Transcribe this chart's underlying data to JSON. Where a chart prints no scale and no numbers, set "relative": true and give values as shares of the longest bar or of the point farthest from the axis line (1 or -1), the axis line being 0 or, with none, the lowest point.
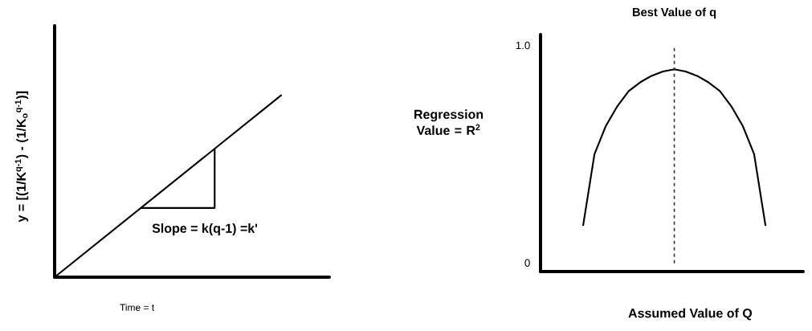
{
  "chart_data": [
    {
      "type": "line",
      "relative": true,
      "categories": [
        null,
        null
      ],
      "values": [
        0,
        1
      ],
      "color": "#000000",
      "xlabel": "Time = t",
      "ylabel": "y = [(1/K$^{q-1}$) - (1/K$_{o}$$^{q-1}$)]",
      "annotations": [
        "Slope = k(q-1) =k'"
      ]
    },
    {
      "type": "line",
      "categories": [
        null,
        null,
        null,
        null,
        null,
        null,
        null,
        null,
        null,
        null,
        null,
        null,
        null,
        null,
        null,
        null,
        null
      ],
      "values": [
        0.17,
        0.5,
        0.63,
        0.72,
        0.79,
        0.83,
        0.86,
        0.88,
        0.89,
        0.88,
        0.86,
        0.83,
        0.79,
        0.72,
        0.63,
        0.5,
        0.17
      ],
      "color": "#000000",
      "ylim": [
        -0.04,
        1.05
      ],
      "yticks": [
        0,
        {
          "value": 1,
          "label": "1.0"
        }
      ],
      "tick_labels": "y",
      "ylabel": "Regression Value = R$^{2}$",
      "xlabel": "Assumed Value of Q",
      "ref_lines": [
        {
          "axis": "x",
          "label": "Best Value of q",
          "line_style": "dashed",
          "color": "#333333"
        }
      ]
    }
  ]
}
